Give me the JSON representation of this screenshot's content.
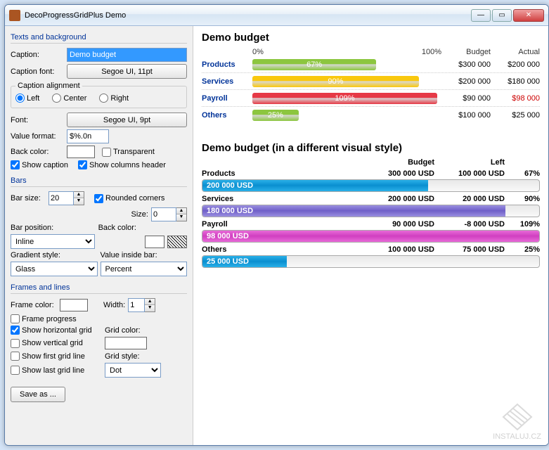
{
  "window": {
    "title": "DecoProgressGridPlus Demo"
  },
  "left": {
    "group_texts": "Texts and background",
    "caption_lbl": "Caption:",
    "caption_val": "Demo budget",
    "caption_font_lbl": "Caption font:",
    "caption_font_btn": "Segoe UI, 11pt",
    "alignment_legend": "Caption alignment",
    "align_left": "Left",
    "align_center": "Center",
    "align_right": "Right",
    "font_lbl": "Font:",
    "font_btn": "Segoe UI, 9pt",
    "valfmt_lbl": "Value format:",
    "valfmt_val": "$%.0n",
    "backcolor_lbl": "Back color:",
    "transparent_lbl": "Transparent",
    "show_caption": "Show caption",
    "show_cols": "Show columns header",
    "group_bars": "Bars",
    "barsize_lbl": "Bar size:",
    "barsize_val": "20",
    "rounded_lbl": "Rounded corners",
    "size_lbl": "Size:",
    "size_val": "0",
    "barpos_lbl": "Bar position:",
    "barpos_val": "Inline",
    "backcolor2_lbl": "Back color:",
    "gradstyle_lbl": "Gradient style:",
    "gradstyle_val": "Glass",
    "valinside_lbl": "Value inside bar:",
    "valinside_val": "Percent",
    "group_frames": "Frames and lines",
    "framecolor_lbl": "Frame color:",
    "width_lbl": "Width:",
    "width_val": "1",
    "frameprog": "Frame progress",
    "showhgrid": "Show horizontal grid",
    "gridcolor_lbl": "Grid color:",
    "showvgrid": "Show vertical grid",
    "showfirst": "Show first grid line",
    "gridstyle_lbl": "Grid style:",
    "gridstyle_val": "Dot",
    "showlast": "Show last grid line",
    "save": "Save as ..."
  },
  "grid1": {
    "title": "Demo budget",
    "scale_min": "0%",
    "scale_max": "100%",
    "col_budget": "Budget",
    "col_actual": "Actual",
    "rows": [
      {
        "name": "Products",
        "pct": 67,
        "pct_label": "67%",
        "budget": "$300 000",
        "actual": "$200 000",
        "color": "#8cc63f",
        "over": false
      },
      {
        "name": "Services",
        "pct": 90,
        "pct_label": "90%",
        "budget": "$200 000",
        "actual": "$180 000",
        "color": "#f9c80e",
        "over": false
      },
      {
        "name": "Payroll",
        "pct": 109,
        "pct_label": "109%",
        "budget": "$90 000",
        "actual": "$98 000",
        "color": "#e63946",
        "over": true
      },
      {
        "name": "Others",
        "pct": 25,
        "pct_label": "25%",
        "budget": "$100 000",
        "actual": "$25 000",
        "color": "#8cc63f",
        "over": false
      }
    ]
  },
  "grid2": {
    "title": "Demo budget (in a different visual style)",
    "col_budget": "Budget",
    "col_left": "Left",
    "rows": [
      {
        "name": "Products",
        "budget": "300 000 USD",
        "left": "100 000 USD",
        "pct": "67%",
        "fill": 67,
        "bar_label": "200 000 USD",
        "color1": "#2ab0e8",
        "color2": "#0a8fd0"
      },
      {
        "name": "Services",
        "budget": "200 000 USD",
        "left": "20 000 USD",
        "pct": "90%",
        "fill": 90,
        "bar_label": "180 000 USD",
        "color1": "#9a8fe0",
        "color2": "#6f5fc8"
      },
      {
        "name": "Payroll",
        "budget": "90 000 USD",
        "left": "-8 000 USD",
        "pct": "109%",
        "fill": 100,
        "bar_label": "98 000 USD",
        "color1": "#e86ad8",
        "color2": "#d040c0"
      },
      {
        "name": "Others",
        "budget": "100 000 USD",
        "left": "75 000 USD",
        "pct": "25%",
        "fill": 25,
        "bar_label": "25 000 USD",
        "color1": "#2ab0e8",
        "color2": "#0a8fd0"
      }
    ]
  },
  "watermark": "INSTALUJ.CZ"
}
